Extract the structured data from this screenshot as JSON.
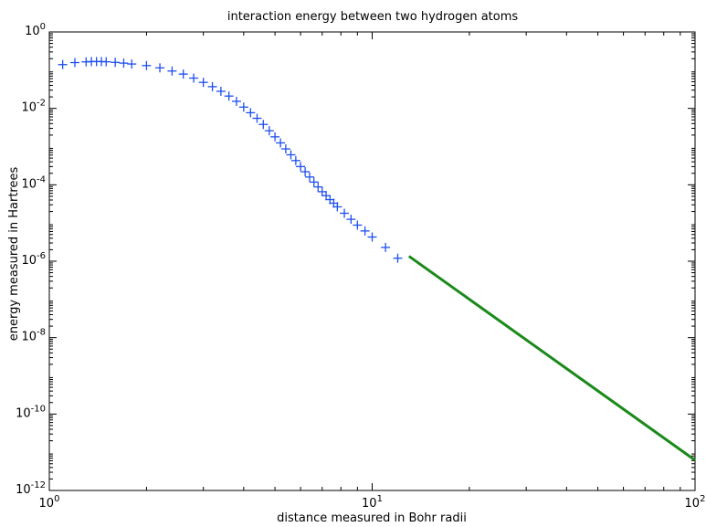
{
  "chart_data": {
    "type": "scatter",
    "title": "interaction energy between two hydrogen atoms",
    "xlabel": "distance measured in Bohr radii",
    "ylabel": "energy measured in Hartrees",
    "xscale": "log",
    "yscale": "log",
    "xlim": [
      1,
      100
    ],
    "ylim": [
      1e-12,
      1
    ],
    "grid": false,
    "x_ticks": [
      {
        "value": 1,
        "base": "10",
        "exp": "0"
      },
      {
        "value": 10,
        "base": "10",
        "exp": "1"
      },
      {
        "value": 100,
        "base": "10",
        "exp": "2"
      }
    ],
    "y_ticks": [
      {
        "value": 1e-12,
        "base": "10",
        "exp": "-12"
      },
      {
        "value": 1e-10,
        "base": "10",
        "exp": "-10"
      },
      {
        "value": 1e-08,
        "base": "10",
        "exp": "-8"
      },
      {
        "value": 1e-06,
        "base": "10",
        "exp": "-6"
      },
      {
        "value": 0.0001,
        "base": "10",
        "exp": "-4"
      },
      {
        "value": 0.01,
        "base": "10",
        "exp": "-2"
      },
      {
        "value": 1,
        "base": "10",
        "exp": "0"
      }
    ],
    "series": [
      {
        "kind": "scatter",
        "marker": "+",
        "color": "#1f4ff0",
        "points": [
          [
            1.1,
            0.14
          ],
          [
            1.2,
            0.158
          ],
          [
            1.3,
            0.165
          ],
          [
            1.35,
            0.168
          ],
          [
            1.4,
            0.168
          ],
          [
            1.45,
            0.168
          ],
          [
            1.5,
            0.166
          ],
          [
            1.6,
            0.16
          ],
          [
            1.7,
            0.153
          ],
          [
            1.8,
            0.145
          ],
          [
            2.0,
            0.132
          ],
          [
            2.2,
            0.115
          ],
          [
            2.4,
            0.095
          ],
          [
            2.6,
            0.079
          ],
          [
            2.8,
            0.062
          ],
          [
            3.0,
            0.048
          ],
          [
            3.2,
            0.037
          ],
          [
            3.4,
            0.028
          ],
          [
            3.6,
            0.021
          ],
          [
            3.8,
            0.0153
          ],
          [
            4.0,
            0.0108
          ],
          [
            4.2,
            0.0077
          ],
          [
            4.4,
            0.0055
          ],
          [
            4.6,
            0.0038
          ],
          [
            4.8,
            0.0026
          ],
          [
            5.0,
            0.0018
          ],
          [
            5.2,
            0.00125
          ],
          [
            5.4,
            0.00087
          ],
          [
            5.6,
            0.00061
          ],
          [
            5.8,
            0.00043
          ],
          [
            6.0,
            0.0003
          ],
          [
            6.2,
            0.00022
          ],
          [
            6.4,
            0.00016
          ],
          [
            6.6,
            0.000118
          ],
          [
            6.8,
            8.8e-05
          ],
          [
            7.0,
            6.6e-05
          ],
          [
            7.2,
            5.2e-05
          ],
          [
            7.4,
            4.1e-05
          ],
          [
            7.6,
            3.3e-05
          ],
          [
            7.8,
            2.65e-05
          ],
          [
            8.2,
            1.8e-05
          ],
          [
            8.6,
            1.25e-05
          ],
          [
            9.0,
            8.8e-06
          ],
          [
            9.5,
            6.2e-06
          ],
          [
            10.0,
            4.3e-06
          ],
          [
            11.0,
            2.3e-06
          ],
          [
            12.0,
            1.2e-06
          ]
        ]
      },
      {
        "kind": "line",
        "color": "#1a8a1a",
        "points": [
          [
            13.0,
            1.35e-06
          ],
          [
            100.0,
            6.2e-12
          ]
        ]
      }
    ]
  }
}
